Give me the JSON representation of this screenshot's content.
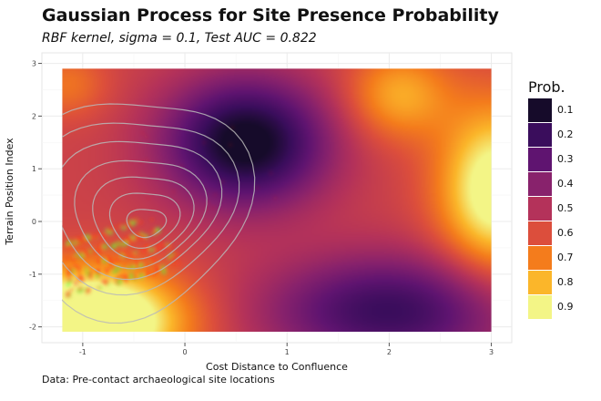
{
  "chart_data": {
    "type": "heatmap",
    "title": "Gaussian Process for Site Presence Probability",
    "subtitle": "RBF kernel, sigma = 0.1, Test AUC = 0.822",
    "caption": "Data: Pre-contact archaeological site locations",
    "xlabel": "Cost Distance to Confluence",
    "ylabel": "Terrain Position Index",
    "xlim": [
      -1.4,
      3.2
    ],
    "ylim": [
      -2.3,
      3.2
    ],
    "x_ticks": [
      "-1",
      "0",
      "1",
      "2",
      "3"
    ],
    "y_ticks": [
      "-2",
      "-1",
      "0",
      "1",
      "2",
      "3"
    ],
    "x_tick_values": [
      -1,
      0,
      1,
      2,
      3
    ],
    "y_tick_values": [
      -2,
      -1,
      0,
      1,
      2,
      3
    ],
    "grid": true,
    "legend_position": "right",
    "legend": {
      "title": "Prob.",
      "labels": [
        "0.1",
        "0.2",
        "0.3",
        "0.4",
        "0.5",
        "0.6",
        "0.7",
        "0.8",
        "0.9"
      ],
      "colors": [
        "#160b2a",
        "#3a0d5c",
        "#5f1470",
        "#88226c",
        "#b4325a",
        "#dc4e3c",
        "#f47c1c",
        "#fbb62a",
        "#f3f586"
      ]
    },
    "contour_color": "#b8b8b8",
    "point_colors": [
      "#ff3a1a",
      "#4cff3a"
    ]
  }
}
